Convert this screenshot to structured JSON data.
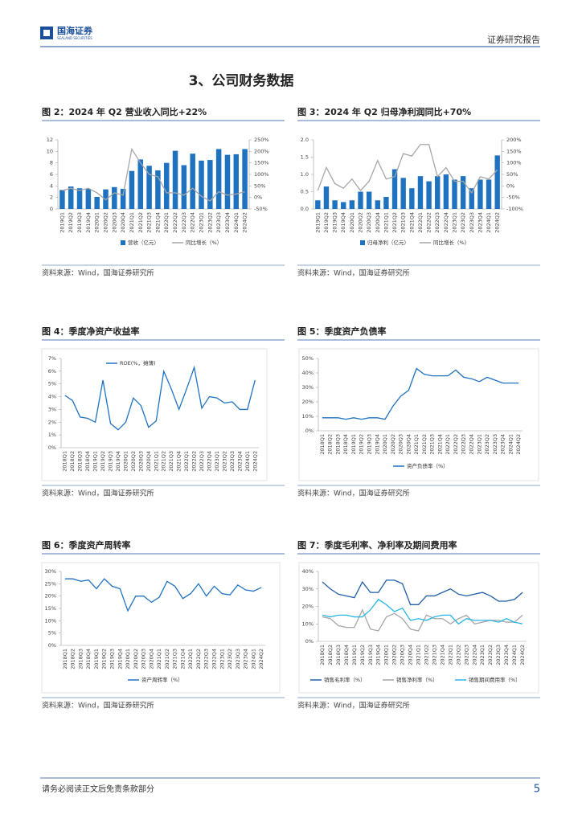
{
  "header": {
    "logo_text": "国海证券",
    "logo_subtext": "SEALAND SECURITIES",
    "report_type": "证券研究报告"
  },
  "section_title": "3、公司财务数据",
  "chart_data": [
    {
      "type": "combo",
      "title": "图 2：2024 年 Q2 营业收入同比+22%",
      "source": "资料来源：Wind，国海证券研究所",
      "categories": [
        "2019Q1",
        "2019Q2",
        "2019Q3",
        "2019Q4",
        "2020Q1",
        "2020Q2",
        "2020Q3",
        "2020Q4",
        "2021Q1",
        "2021Q2",
        "2021Q3",
        "2021Q4",
        "2022Q1",
        "2022Q2",
        "2022Q3",
        "2022Q4",
        "2023Q1",
        "2023Q2",
        "2023Q3",
        "2023Q4",
        "2024Q1",
        "2024Q2"
      ],
      "series": [
        {
          "name": "营收（亿元）",
          "type": "bar",
          "color": "#1f72c0",
          "values": [
            3.3,
            3.9,
            3.6,
            3.5,
            2.1,
            3.4,
            3.8,
            3.5,
            6.6,
            8.6,
            7.5,
            6.7,
            8.0,
            10.1,
            7.6,
            9.6,
            8.4,
            8.5,
            10.4,
            9.4,
            9.5,
            10.4
          ]
        },
        {
          "name": "同比增长（%）",
          "type": "line",
          "axis": "y2",
          "color": "#a6a6a6",
          "values": [
            30,
            40,
            30,
            40,
            20,
            -10,
            20,
            10,
            210,
            150,
            100,
            90,
            20,
            20,
            10,
            40,
            5,
            -15,
            25,
            10,
            15,
            25
          ]
        }
      ],
      "ylim": [
        0,
        12
      ],
      "yticks": [
        0,
        2,
        4,
        6,
        8,
        10,
        12
      ],
      "y2lim": [
        -50,
        250
      ],
      "y2ticks": [
        {
          "value": -50,
          "label": "-50%"
        },
        {
          "value": 0,
          "label": "0%"
        },
        {
          "value": 50,
          "label": "50%"
        },
        {
          "value": 100,
          "label": "100%"
        },
        {
          "value": 150,
          "label": "150%"
        },
        {
          "value": 200,
          "label": "200%"
        },
        {
          "value": 250,
          "label": "250%"
        }
      ]
    },
    {
      "type": "combo",
      "title": "图 3：2024 年 Q2 归母净利润同比+70%",
      "source": "资料来源：Wind，国海证券研究所",
      "categories": [
        "2019Q1",
        "2019Q2",
        "2019Q3",
        "2019Q4",
        "2020Q1",
        "2020Q2",
        "2020Q3",
        "2020Q4",
        "2021Q1",
        "2021Q2",
        "2021Q3",
        "2021Q4",
        "2022Q1",
        "2022Q2",
        "2022Q3",
        "2022Q4",
        "2023Q1",
        "2023Q2",
        "2023Q3",
        "2023Q4",
        "2024Q1",
        "2024Q2"
      ],
      "series": [
        {
          "name": "归母净利（亿元）",
          "type": "bar",
          "color": "#1f72c0",
          "values": [
            0.25,
            0.65,
            0.25,
            0.2,
            0.25,
            0.5,
            0.5,
            0.25,
            0.35,
            1.15,
            0.9,
            0.6,
            0.95,
            0.8,
            0.95,
            1.0,
            0.85,
            0.95,
            0.6,
            0.85,
            0.85,
            1.55
          ]
        },
        {
          "name": "同比增长（%）",
          "type": "line",
          "axis": "y2",
          "color": "#a6a6a6",
          "values": [
            -20,
            80,
            10,
            -10,
            30,
            -20,
            20,
            110,
            30,
            40,
            140,
            130,
            180,
            180,
            40,
            80,
            20,
            20,
            -30,
            40,
            30,
            70
          ]
        }
      ],
      "ylim": [
        0,
        2
      ],
      "yticks": [
        {
          "value": 0,
          "label": "0.0"
        },
        {
          "value": 0.5,
          "label": "0.5"
        },
        {
          "value": 1,
          "label": "1.0"
        },
        {
          "value": 1.5,
          "label": "1.5"
        },
        {
          "value": 2,
          "label": "2.0"
        }
      ],
      "y2lim": [
        -100,
        200
      ],
      "y2ticks": [
        {
          "value": -100,
          "label": "-100%"
        },
        {
          "value": -50,
          "label": "-50%"
        },
        {
          "value": 0,
          "label": "0%"
        },
        {
          "value": 50,
          "label": "50%"
        },
        {
          "value": 100,
          "label": "100%"
        },
        {
          "value": 150,
          "label": "150%"
        },
        {
          "value": 200,
          "label": "200%"
        }
      ]
    },
    {
      "type": "line",
      "title": "图 4：季度净资产收益率",
      "source": "资料来源：Wind，国海证券研究所",
      "categories": [
        "2018Q1",
        "2018Q2",
        "2018Q3",
        "2018Q4",
        "2019Q1",
        "2019Q2",
        "2019Q3",
        "2019Q4",
        "2020Q1",
        "2020Q2",
        "2020Q3",
        "2020Q4",
        "2021Q1",
        "2021Q2",
        "2021Q3",
        "2021Q4",
        "2022Q1",
        "2022Q2",
        "2022Q3",
        "2022Q4",
        "2023Q1",
        "2023Q2",
        "2023Q3",
        "2023Q4",
        "2024Q1",
        "2024Q2"
      ],
      "series": [
        {
          "name": "ROE(%，摊薄)",
          "color": "#1f72c0",
          "values": [
            4.1,
            3.7,
            2.4,
            2.3,
            2.0,
            5.3,
            1.9,
            1.4,
            2.0,
            3.9,
            3.3,
            1.6,
            2.1,
            6.0,
            4.6,
            3.0,
            4.6,
            6.3,
            3.1,
            4.0,
            3.9,
            3.5,
            3.6,
            3.0,
            3.0,
            5.3
          ]
        }
      ],
      "ylim": [
        0,
        7
      ],
      "yticks": [
        {
          "value": 0,
          "label": "0%"
        },
        {
          "value": 1,
          "label": "1%"
        },
        {
          "value": 2,
          "label": "2%"
        },
        {
          "value": 3,
          "label": "3%"
        },
        {
          "value": 4,
          "label": "4%"
        },
        {
          "value": 5,
          "label": "5%"
        },
        {
          "value": 6,
          "label": "6%"
        },
        {
          "value": 7,
          "label": "7%"
        }
      ]
    },
    {
      "type": "line",
      "title": "图 5：季度资产负债率",
      "source": "资料来源：Wind，国海证券研究所",
      "categories": [
        "2018Q1",
        "2018Q2",
        "2018Q3",
        "2018Q4",
        "2019Q1",
        "2019Q2",
        "2019Q3",
        "2019Q4",
        "2020Q1",
        "2020Q2",
        "2020Q3",
        "2020Q4",
        "2021Q1",
        "2021Q2",
        "2021Q3",
        "2021Q4",
        "2022Q1",
        "2022Q2",
        "2022Q3",
        "2022Q4",
        "2023Q1",
        "2023Q2",
        "2023Q3",
        "2023Q4",
        "2024Q1",
        "2024Q2"
      ],
      "series": [
        {
          "name": "资产负债率（%）",
          "color": "#1f72c0",
          "values": [
            9,
            9,
            9,
            8,
            9,
            8,
            9,
            9,
            8,
            17,
            24,
            28,
            43,
            39,
            38,
            38,
            38,
            42,
            37,
            36,
            34,
            37,
            35,
            33,
            33,
            33
          ]
        }
      ],
      "ylim": [
        0,
        50
      ],
      "yticks": [
        {
          "value": 0,
          "label": "0%"
        },
        {
          "value": 10,
          "label": "10%"
        },
        {
          "value": 20,
          "label": "20%"
        },
        {
          "value": 30,
          "label": "30%"
        },
        {
          "value": 40,
          "label": "40%"
        },
        {
          "value": 50,
          "label": "50%"
        }
      ]
    },
    {
      "type": "line",
      "title": "图 6：季度资产周转率",
      "source": "资料来源：Wind，国海证券研究所",
      "categories": [
        "2018Q1",
        "2018Q2",
        "2018Q3",
        "2018Q4",
        "2019Q1",
        "2019Q2",
        "2019Q3",
        "2019Q4",
        "2020Q1",
        "2020Q2",
        "2020Q3",
        "2020Q4",
        "2021Q1",
        "2021Q2",
        "2021Q3",
        "2021Q4",
        "2022Q1",
        "2022Q2",
        "2022Q3",
        "2022Q4",
        "2023Q1",
        "2023Q2",
        "2023Q3",
        "2023Q4",
        "2024Q1",
        "2024Q2"
      ],
      "series": [
        {
          "name": "资产周转率（%）",
          "color": "#1f72c0",
          "values": [
            27,
            27,
            26,
            26.5,
            23,
            27,
            24,
            23,
            14,
            20,
            20,
            17.5,
            19.5,
            26,
            24,
            19,
            21,
            25,
            20,
            24,
            21,
            20.5,
            24.5,
            22.5,
            22,
            23.5
          ]
        }
      ],
      "ylim": [
        0,
        30
      ],
      "yticks": [
        {
          "value": 0,
          "label": "0%"
        },
        {
          "value": 5,
          "label": "5%"
        },
        {
          "value": 10,
          "label": "10%"
        },
        {
          "value": 15,
          "label": "15%"
        },
        {
          "value": 20,
          "label": "20%"
        },
        {
          "value": 25,
          "label": "25%"
        },
        {
          "value": 30,
          "label": "30%"
        }
      ]
    },
    {
      "type": "line",
      "title": "图 7：季度毛利率、净利率及期间费用率",
      "source": "资料来源：Wind，国海证券研究所",
      "categories": [
        "2018Q1",
        "2018Q2",
        "2018Q3",
        "2018Q4",
        "2019Q1",
        "2019Q2",
        "2019Q3",
        "2019Q4",
        "2020Q1",
        "2020Q2",
        "2020Q3",
        "2020Q4",
        "2021Q1",
        "2021Q2",
        "2021Q3",
        "2021Q4",
        "2022Q1",
        "2022Q2",
        "2022Q3",
        "2022Q4",
        "2023Q1",
        "2023Q2",
        "2023Q3",
        "2023Q4",
        "2024Q1",
        "2024Q2"
      ],
      "series": [
        {
          "name": "销售毛利率（%）",
          "color": "#1f5fa8",
          "values": [
            34,
            30,
            27,
            26,
            25,
            34,
            28,
            28,
            35,
            35,
            33,
            21,
            21,
            26,
            26,
            28,
            30,
            27,
            26,
            27,
            28,
            26,
            23,
            23,
            24,
            28
          ]
        },
        {
          "name": "销售净利率（%）",
          "color": "#a6a6a6",
          "values": [
            14,
            13,
            9,
            8,
            8,
            18,
            7,
            6,
            14,
            16,
            13,
            7,
            6,
            15,
            13,
            13,
            10,
            13,
            15,
            10,
            11,
            12,
            12,
            11,
            11,
            15
          ]
        },
        {
          "name": "销售期间费用率（%）",
          "color": "#2ab5e6",
          "values": [
            15,
            14,
            15,
            15,
            14,
            14,
            18,
            24,
            21,
            17,
            19,
            12,
            13,
            12,
            14,
            15,
            15,
            10,
            13,
            12,
            12,
            12,
            11,
            13,
            11,
            10
          ]
        }
      ],
      "ylim": [
        0,
        40
      ],
      "yticks": [
        {
          "value": 0,
          "label": "0%"
        },
        {
          "value": 10,
          "label": "10%"
        },
        {
          "value": 20,
          "label": "20%"
        },
        {
          "value": 30,
          "label": "30%"
        },
        {
          "value": 40,
          "label": "40%"
        }
      ]
    }
  ],
  "footer": {
    "disclaimer": "请务必阅读正文后免责条款部分",
    "page_number": 5
  }
}
